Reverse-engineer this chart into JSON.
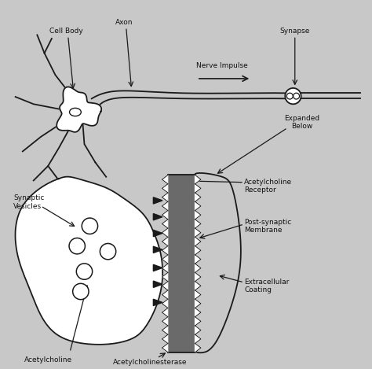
{
  "bg_color": "#c8c8c8",
  "inner_bg": "#f0f0f0",
  "border_color": "#1a1a1a",
  "text_color": "#111111",
  "labels": {
    "cell_body": "Cell Body",
    "axon": "Axon",
    "synapse": "Synapse",
    "nerve_impulse": "Nerve Impulse",
    "expanded_below": "Expanded\nBelow",
    "synaptic_vesicles": "Synaptic\nVesicles",
    "acetylcholine": "Acetylcholine",
    "acetylcholinesterase": "Acetylcholinesterase",
    "acetylcholine_receptor": "Acetylcholine\nReceptor",
    "post_synaptic": "Post-synaptic\nMembrane",
    "extracellular": "Extracellular\nCoating"
  },
  "figsize": [
    4.74,
    4.69
  ],
  "dpi": 100
}
